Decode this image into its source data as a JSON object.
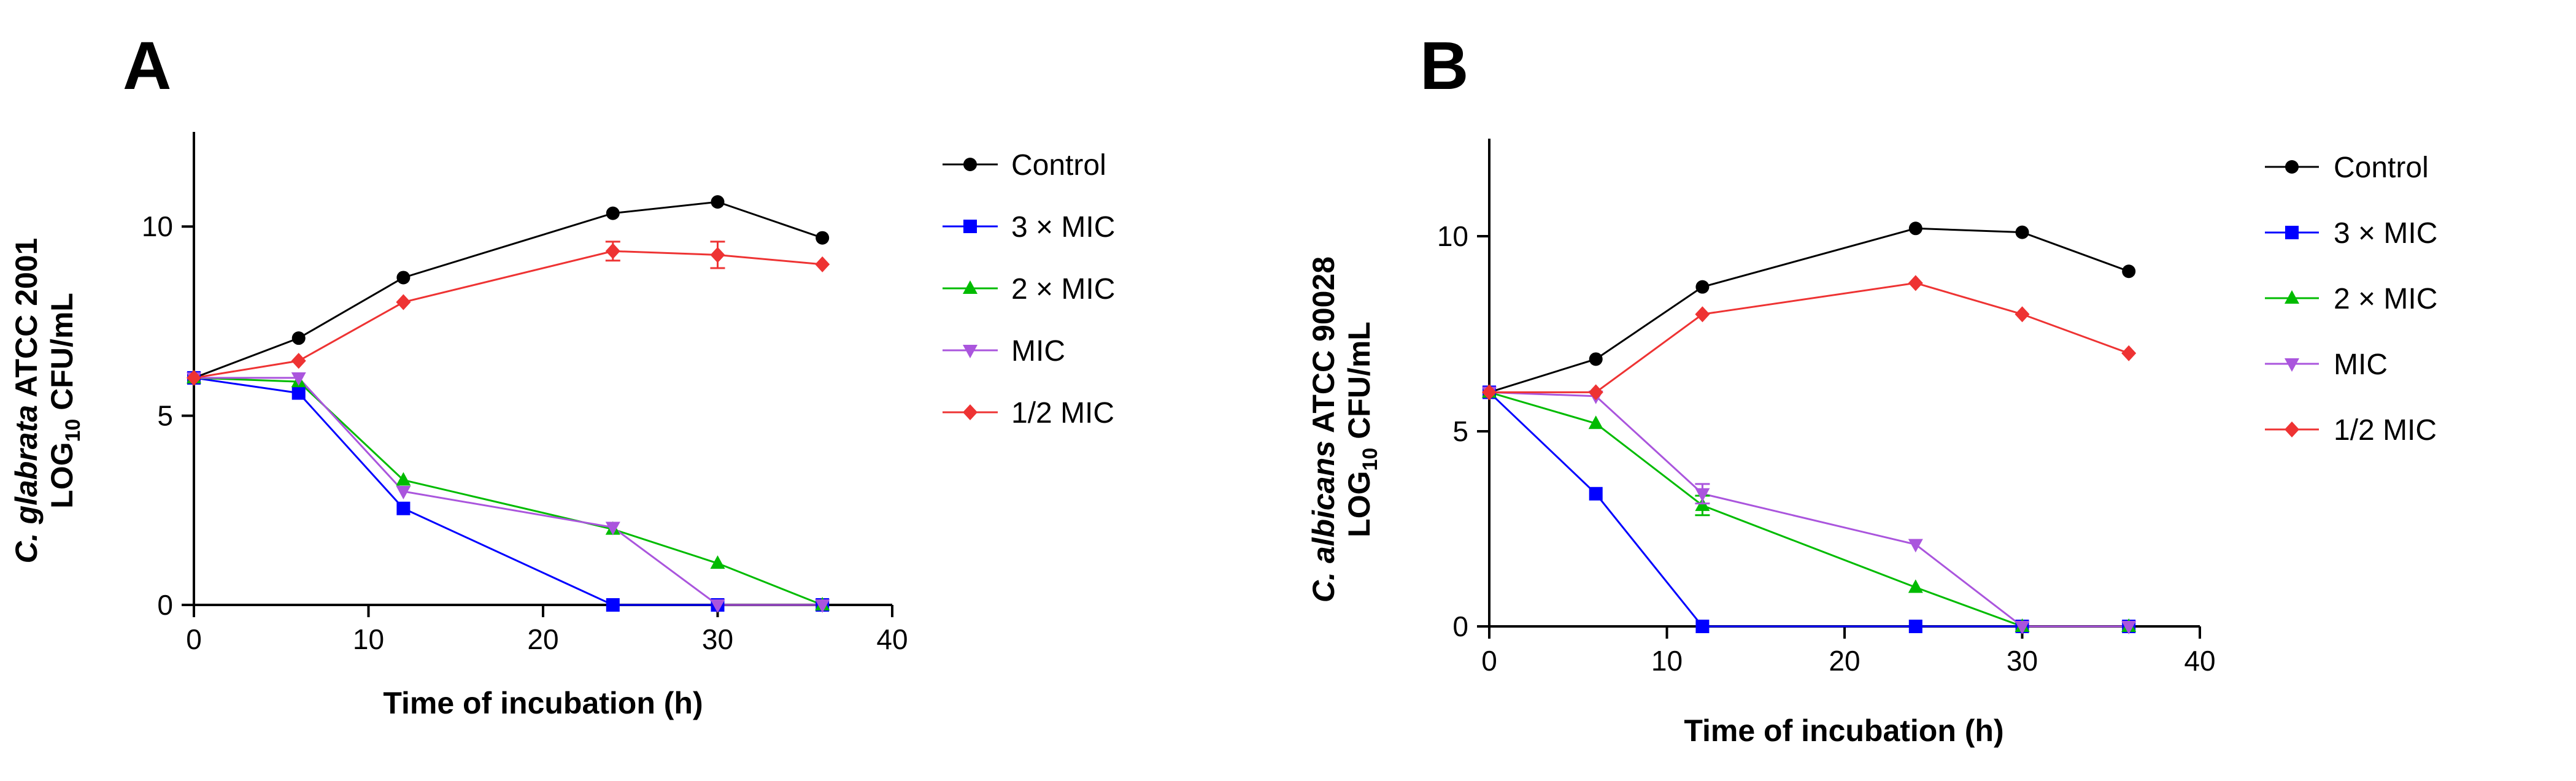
{
  "chart_data": [
    {
      "type": "line",
      "panel_label": "A",
      "xlabel": "Time of incubation (h)",
      "ylabel_line1_italic": "C. glabrata",
      "ylabel_line1_rest": " ATCC 2001",
      "ylabel_line2_prefix": "LOG",
      "ylabel_line2_sub": "10",
      "ylabel_line2_suffix": " CFU/mL",
      "xlim": [
        0,
        40
      ],
      "ylim": [
        0,
        12.5
      ],
      "xticks": [
        0,
        10,
        20,
        30,
        40
      ],
      "yticks": [
        0,
        5,
        10
      ],
      "x": [
        0,
        6,
        12,
        24,
        30,
        36
      ],
      "series": [
        {
          "name": "Control",
          "color": "#000000",
          "marker": "circle",
          "values": [
            6.0,
            7.05,
            8.65,
            10.35,
            10.65,
            9.7
          ]
        },
        {
          "name": "3 × MIC",
          "color": "#0000ff",
          "marker": "square",
          "values": [
            6.0,
            5.6,
            2.55,
            0,
            0,
            0
          ]
        },
        {
          "name": "2 × MIC",
          "color": "#00bb00",
          "marker": "triangle-up",
          "values": [
            6.0,
            5.9,
            3.3,
            2.0,
            1.1,
            0
          ]
        },
        {
          "name": "MIC",
          "color": "#aa55dd",
          "marker": "triangle-down",
          "values": [
            6.0,
            6.0,
            3.0,
            2.05,
            0,
            0
          ]
        },
        {
          "name": "1/2 MIC",
          "color": "#ee3333",
          "marker": "diamond",
          "values": [
            6.0,
            6.45,
            8.0,
            9.35,
            9.25,
            9.0
          ],
          "errors": [
            0,
            0,
            0,
            0.25,
            0.35,
            0
          ]
        }
      ]
    },
    {
      "type": "line",
      "panel_label": "B",
      "xlabel": "Time of incubation (h)",
      "ylabel_line1_italic": "C. albicans",
      "ylabel_line1_rest": " ATCC 90028",
      "ylabel_line2_prefix": "LOG",
      "ylabel_line2_sub": "10",
      "ylabel_line2_suffix": " CFU/mL",
      "xlim": [
        0,
        40
      ],
      "ylim": [
        0,
        12.5
      ],
      "xticks": [
        0,
        10,
        20,
        30,
        40
      ],
      "yticks": [
        0,
        5,
        10
      ],
      "x": [
        0,
        6,
        12,
        24,
        30,
        36
      ],
      "series": [
        {
          "name": "Control",
          "color": "#000000",
          "marker": "circle",
          "values": [
            6.0,
            6.85,
            8.7,
            10.2,
            10.1,
            9.1
          ]
        },
        {
          "name": "3 × MIC",
          "color": "#0000ff",
          "marker": "square",
          "values": [
            6.0,
            3.4,
            0,
            0,
            0,
            0
          ]
        },
        {
          "name": "2 × MIC",
          "color": "#00bb00",
          "marker": "triangle-up",
          "values": [
            6.0,
            5.2,
            3.1,
            1.0,
            0,
            0
          ],
          "errors": [
            0,
            0,
            0.25,
            0,
            0,
            0
          ]
        },
        {
          "name": "MIC",
          "color": "#aa55dd",
          "marker": "triangle-down",
          "values": [
            6.0,
            5.9,
            3.4,
            2.1,
            0,
            0
          ],
          "errors": [
            0,
            0,
            0.25,
            0,
            0,
            0
          ]
        },
        {
          "name": "1/2 MIC",
          "color": "#ee3333",
          "marker": "diamond",
          "values": [
            6.0,
            6.0,
            8.0,
            8.8,
            8.0,
            7.0
          ]
        }
      ]
    }
  ]
}
